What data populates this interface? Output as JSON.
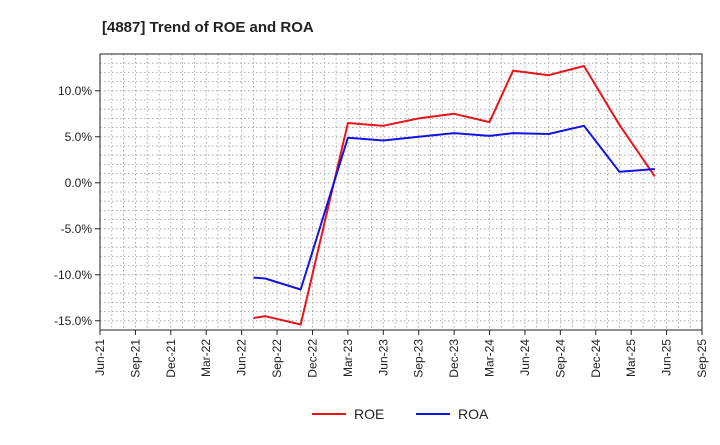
{
  "chart_data": {
    "type": "line",
    "title": "[4887]  Trend of ROE and ROA",
    "xlabel": "",
    "ylabel": "",
    "x_ticks": [
      "Jun-21",
      "Sep-21",
      "Dec-21",
      "Mar-22",
      "Jun-22",
      "Sep-22",
      "Dec-22",
      "Mar-23",
      "Jun-23",
      "Sep-23",
      "Dec-23",
      "Mar-24",
      "Jun-24",
      "Sep-24",
      "Dec-24",
      "Mar-25",
      "Jun-25",
      "Sep-25"
    ],
    "y_ticks": [
      10,
      5,
      0,
      -5,
      -10,
      -15
    ],
    "y_tick_labels": [
      "10.0%",
      "5.0%",
      "0.0%",
      "-5.0%",
      "-10.0%",
      "-15.0%"
    ],
    "ylim": [
      -16,
      14
    ],
    "grid": true,
    "legend_position": "bottom-center",
    "series": [
      {
        "name": "ROE",
        "color": "#e8141c",
        "points": [
          {
            "x": "Jul-22",
            "y": -14.7
          },
          {
            "x": "Aug-22",
            "y": -14.5
          },
          {
            "x": "Nov-22",
            "y": -15.4
          },
          {
            "x": "Mar-23",
            "y": 6.5
          },
          {
            "x": "Jun-23",
            "y": 6.2
          },
          {
            "x": "Sep-23",
            "y": 7.0
          },
          {
            "x": "Dec-23",
            "y": 7.5
          },
          {
            "x": "Mar-24",
            "y": 6.6
          },
          {
            "x": "May-24",
            "y": 12.2
          },
          {
            "x": "Aug-24",
            "y": 11.7
          },
          {
            "x": "Nov-24",
            "y": 12.7
          },
          {
            "x": "Feb-25",
            "y": 6.3
          },
          {
            "x": "May-25",
            "y": 0.7
          }
        ]
      },
      {
        "name": "ROA",
        "color": "#1414e0",
        "points": [
          {
            "x": "Jul-22",
            "y": -10.3
          },
          {
            "x": "Aug-22",
            "y": -10.4
          },
          {
            "x": "Nov-22",
            "y": -11.6
          },
          {
            "x": "Mar-23",
            "y": 4.9
          },
          {
            "x": "Jun-23",
            "y": 4.6
          },
          {
            "x": "Sep-23",
            "y": 5.0
          },
          {
            "x": "Dec-23",
            "y": 5.4
          },
          {
            "x": "Mar-24",
            "y": 5.1
          },
          {
            "x": "May-24",
            "y": 5.4
          },
          {
            "x": "Aug-24",
            "y": 5.3
          },
          {
            "x": "Nov-24",
            "y": 6.2
          },
          {
            "x": "Feb-25",
            "y": 1.2
          },
          {
            "x": "May-25",
            "y": 1.5
          }
        ]
      }
    ]
  }
}
